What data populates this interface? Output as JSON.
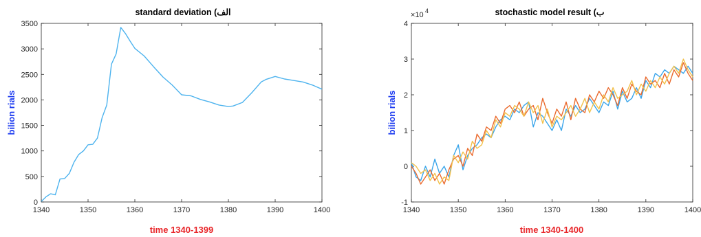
{
  "chart_data": [
    {
      "type": "line",
      "title": "standard deviation (الف",
      "xlabel": "time 1340-1399",
      "ylabel": "bilion rials",
      "xlim": [
        1340,
        1400
      ],
      "ylim": [
        0,
        3500
      ],
      "xticks": [
        "1340",
        "1350",
        "1360",
        "1370",
        "1380",
        "1390",
        "1400"
      ],
      "yticks": [
        "0",
        "500",
        "1000",
        "1500",
        "2000",
        "2500",
        "3000",
        "3500"
      ],
      "grid": false,
      "series": [
        {
          "color": "#4db3ee",
          "x": [
            1340,
            1341,
            1342,
            1343,
            1344,
            1345,
            1346,
            1347,
            1348,
            1349,
            1350,
            1351,
            1352,
            1353,
            1354,
            1355,
            1356,
            1357,
            1358,
            1359,
            1360,
            1362,
            1364,
            1366,
            1368,
            1370,
            1372,
            1374,
            1376,
            1378,
            1380,
            1381,
            1383,
            1385,
            1387,
            1388,
            1390,
            1392,
            1394,
            1396,
            1398,
            1400
          ],
          "y": [
            10,
            100,
            160,
            140,
            450,
            460,
            560,
            780,
            930,
            1000,
            1120,
            1130,
            1250,
            1650,
            1900,
            2700,
            2900,
            3420,
            3300,
            3150,
            3010,
            2860,
            2650,
            2450,
            2290,
            2100,
            2080,
            2010,
            1960,
            1900,
            1870,
            1880,
            1950,
            2140,
            2350,
            2400,
            2460,
            2410,
            2380,
            2350,
            2290,
            2210
          ]
        }
      ]
    },
    {
      "type": "line",
      "title": "stochastic model result (ب",
      "xlabel": "time 1340-1400",
      "ylabel": "bilion rials",
      "xlim": [
        1340,
        1400
      ],
      "ylim": [
        -1,
        4
      ],
      "yscale_label": "×10",
      "yscale_exp": "4",
      "xticks": [
        "1340",
        "1350",
        "1360",
        "1370",
        "1380",
        "1390",
        "1400"
      ],
      "yticks": [
        "-1",
        "0",
        "1",
        "2",
        "3",
        "4"
      ],
      "grid": false,
      "series": [
        {
          "color": "#3aa5ea",
          "x": [
            1340,
            1341,
            1342,
            1343,
            1344,
            1345,
            1346,
            1347,
            1348,
            1349,
            1350,
            1351,
            1352,
            1353,
            1354,
            1355,
            1356,
            1357,
            1358,
            1359,
            1360,
            1361,
            1362,
            1363,
            1364,
            1365,
            1366,
            1367,
            1368,
            1369,
            1370,
            1371,
            1372,
            1373,
            1374,
            1375,
            1376,
            1377,
            1378,
            1379,
            1380,
            1381,
            1382,
            1383,
            1384,
            1385,
            1386,
            1387,
            1388,
            1389,
            1390,
            1391,
            1392,
            1393,
            1394,
            1395,
            1396,
            1397,
            1398,
            1399,
            1400
          ],
          "y": [
            0.1,
            -0.3,
            -0.4,
            0.0,
            -0.3,
            0.2,
            -0.2,
            0.0,
            -0.3,
            0.3,
            0.6,
            -0.1,
            0.3,
            0.5,
            0.6,
            0.8,
            0.9,
            0.8,
            1.1,
            1.3,
            1.4,
            1.3,
            1.6,
            1.5,
            1.7,
            1.8,
            1.1,
            1.5,
            1.4,
            1.2,
            1.0,
            1.3,
            1.0,
            1.6,
            1.4,
            1.7,
            1.5,
            1.6,
            1.9,
            1.7,
            1.5,
            1.8,
            1.7,
            2.1,
            1.6,
            2.1,
            1.8,
            1.9,
            2.2,
            1.9,
            2.4,
            2.2,
            2.6,
            2.5,
            2.7,
            2.6,
            2.8,
            2.7,
            2.6,
            2.8,
            2.6
          ]
        },
        {
          "color": "#ea6a2e",
          "x": [
            1340,
            1341,
            1342,
            1343,
            1344,
            1345,
            1346,
            1347,
            1348,
            1349,
            1350,
            1351,
            1352,
            1353,
            1354,
            1355,
            1356,
            1357,
            1358,
            1359,
            1360,
            1361,
            1362,
            1363,
            1364,
            1365,
            1366,
            1367,
            1368,
            1369,
            1370,
            1371,
            1372,
            1373,
            1374,
            1375,
            1376,
            1377,
            1378,
            1379,
            1380,
            1381,
            1382,
            1383,
            1384,
            1385,
            1386,
            1387,
            1388,
            1389,
            1390,
            1391,
            1392,
            1393,
            1394,
            1395,
            1396,
            1397,
            1398,
            1399,
            1400
          ],
          "y": [
            0.0,
            -0.2,
            -0.5,
            -0.3,
            -0.1,
            -0.4,
            -0.2,
            -0.5,
            -0.1,
            0.2,
            0.3,
            0.0,
            0.5,
            0.3,
            0.9,
            0.7,
            1.1,
            1.0,
            1.4,
            1.2,
            1.6,
            1.7,
            1.5,
            1.8,
            1.4,
            1.6,
            1.7,
            1.3,
            1.9,
            1.5,
            1.2,
            1.6,
            1.4,
            1.8,
            1.3,
            1.9,
            1.6,
            1.5,
            2.0,
            1.8,
            2.1,
            1.9,
            2.2,
            2.0,
            1.7,
            2.2,
            1.9,
            2.3,
            2.1,
            2.0,
            2.5,
            2.3,
            2.4,
            2.2,
            2.6,
            2.3,
            2.7,
            2.5,
            2.9,
            2.6,
            2.4
          ]
        },
        {
          "color": "#f2c04a",
          "x": [
            1340,
            1341,
            1342,
            1343,
            1344,
            1345,
            1346,
            1347,
            1348,
            1349,
            1350,
            1351,
            1352,
            1353,
            1354,
            1355,
            1356,
            1357,
            1358,
            1359,
            1360,
            1361,
            1362,
            1363,
            1364,
            1365,
            1366,
            1367,
            1368,
            1369,
            1370,
            1371,
            1372,
            1373,
            1374,
            1375,
            1376,
            1377,
            1378,
            1379,
            1380,
            1381,
            1382,
            1383,
            1384,
            1385,
            1386,
            1387,
            1388,
            1389,
            1390,
            1391,
            1392,
            1393,
            1394,
            1395,
            1396,
            1397,
            1398,
            1399,
            1400
          ],
          "y": [
            0.1,
            0.0,
            -0.2,
            -0.1,
            -0.4,
            -0.2,
            -0.5,
            -0.3,
            -0.4,
            0.3,
            0.1,
            0.4,
            0.2,
            0.7,
            0.5,
            0.6,
            1.0,
            0.8,
            1.3,
            1.1,
            1.5,
            1.4,
            1.7,
            1.6,
            1.4,
            1.8,
            1.5,
            1.7,
            1.2,
            1.6,
            1.1,
            1.4,
            1.3,
            1.5,
            1.7,
            1.4,
            1.6,
            1.9,
            1.5,
            1.8,
            1.6,
            2.0,
            1.8,
            2.2,
            1.9,
            2.0,
            2.1,
            2.4,
            2.0,
            2.3,
            2.1,
            2.4,
            2.2,
            2.5,
            2.3,
            2.6,
            2.8,
            2.6,
            3.0,
            2.7,
            2.5
          ]
        }
      ]
    }
  ]
}
